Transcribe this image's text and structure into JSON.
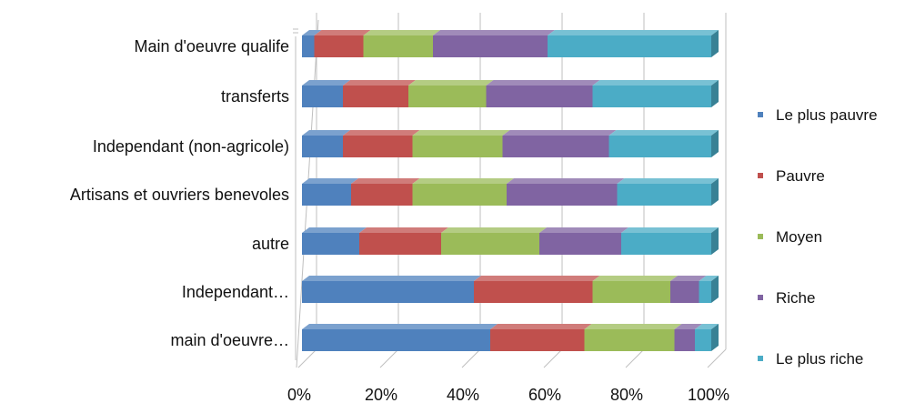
{
  "chart_data": {
    "type": "bar",
    "orientation": "horizontal",
    "stacked": "percent",
    "style": "3d",
    "categories": [
      "Main d'oeuvre qualife",
      "transferts",
      "Independant (non-agricole)",
      "Artisans et ouvriers benevoles",
      "autre",
      "Independant…",
      "main d'oeuvre…"
    ],
    "series": [
      {
        "name": "Le plus pauvre",
        "color": "#4f81bd",
        "values": [
          3,
          10,
          10,
          12,
          14,
          42,
          46
        ]
      },
      {
        "name": "Pauvre",
        "color": "#c0504d",
        "values": [
          12,
          16,
          17,
          15,
          20,
          29,
          23
        ]
      },
      {
        "name": "Moyen",
        "color": "#9bbb59",
        "values": [
          17,
          19,
          22,
          23,
          24,
          19,
          22
        ]
      },
      {
        "name": "Riche",
        "color": "#8064a2",
        "values": [
          28,
          26,
          26,
          27,
          20,
          7,
          5
        ]
      },
      {
        "name": "Le plus riche",
        "color": "#4bacc6",
        "values": [
          40,
          29,
          25,
          23,
          22,
          3,
          4
        ]
      }
    ],
    "xlim": [
      0,
      100
    ],
    "xticks": [
      "0%",
      "20%",
      "40%",
      "60%",
      "80%",
      "100%"
    ],
    "grid": true,
    "legend_position": "right"
  }
}
